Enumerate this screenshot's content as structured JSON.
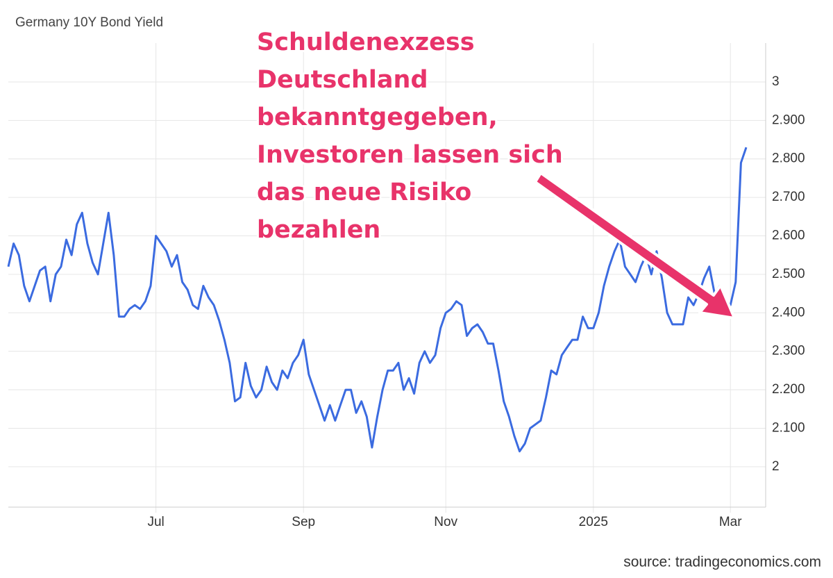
{
  "chart_data": {
    "type": "line",
    "title": "Germany 10Y Bond Yield",
    "annotation": [
      "Schuldenexzess",
      "Deutschland",
      "bekanntgegeben,",
      "Investoren lassen sich",
      "das neue Risiko",
      "bezahlen"
    ],
    "source": "source: tradingeconomics.com",
    "color": "#3b6be0",
    "categories": [
      null,
      null,
      null,
      null,
      null,
      null,
      null,
      null,
      null,
      null,
      null,
      null,
      null,
      null,
      null,
      null,
      null,
      null,
      null,
      null,
      null,
      null,
      null,
      null,
      null,
      null,
      null,
      null,
      "Jul",
      null,
      null,
      null,
      null,
      null,
      null,
      null,
      null,
      null,
      null,
      null,
      null,
      null,
      null,
      null,
      null,
      null,
      null,
      null,
      null,
      null,
      null,
      null,
      null,
      null,
      null,
      null,
      "Sep",
      null,
      null,
      null,
      null,
      null,
      null,
      null,
      null,
      null,
      null,
      null,
      null,
      null,
      null,
      null,
      null,
      null,
      null,
      null,
      null,
      null,
      null,
      null,
      null,
      null,
      null,
      "Nov",
      null,
      null,
      null,
      null,
      null,
      null,
      null,
      null,
      null,
      null,
      null,
      null,
      null,
      null,
      null,
      null,
      null,
      null,
      null,
      null,
      null,
      null,
      null,
      null,
      null,
      null,
      null,
      "2025",
      null,
      null,
      null,
      null,
      null,
      null,
      null,
      null,
      null,
      null,
      null,
      null,
      null,
      null,
      null,
      null,
      null,
      null,
      null,
      null,
      null,
      null,
      null,
      null,
      null,
      "Mar",
      null,
      null,
      null
    ],
    "values": [
      2.52,
      2.58,
      2.55,
      2.47,
      2.43,
      2.47,
      2.51,
      2.52,
      2.43,
      2.5,
      2.52,
      2.59,
      2.55,
      2.63,
      2.66,
      2.58,
      2.53,
      2.5,
      2.58,
      2.66,
      2.55,
      2.39,
      2.39,
      2.41,
      2.42,
      2.41,
      2.43,
      2.47,
      2.6,
      2.58,
      2.56,
      2.52,
      2.55,
      2.48,
      2.46,
      2.42,
      2.41,
      2.47,
      2.44,
      2.42,
      2.38,
      2.33,
      2.27,
      2.17,
      2.18,
      2.27,
      2.21,
      2.18,
      2.2,
      2.26,
      2.22,
      2.2,
      2.25,
      2.23,
      2.27,
      2.29,
      2.33,
      2.24,
      2.2,
      2.16,
      2.12,
      2.16,
      2.12,
      2.16,
      2.2,
      2.2,
      2.14,
      2.17,
      2.13,
      2.05,
      2.13,
      2.2,
      2.25,
      2.25,
      2.27,
      2.2,
      2.23,
      2.19,
      2.27,
      2.3,
      2.27,
      2.29,
      2.36,
      2.4,
      2.41,
      2.43,
      2.42,
      2.34,
      2.36,
      2.37,
      2.35,
      2.32,
      2.32,
      2.25,
      2.17,
      2.13,
      2.08,
      2.04,
      2.06,
      2.1,
      2.11,
      2.12,
      2.18,
      2.25,
      2.24,
      2.29,
      2.31,
      2.33,
      2.33,
      2.39,
      2.36,
      2.36,
      2.4,
      2.47,
      2.52,
      2.56,
      2.59,
      2.52,
      2.5,
      2.48,
      2.52,
      2.55,
      2.5,
      2.56,
      2.49,
      2.4,
      2.37,
      2.37,
      2.37,
      2.44,
      2.42,
      2.45,
      2.49,
      2.52,
      2.45,
      2.47,
      2.4,
      2.42,
      2.48,
      2.79,
      2.83
    ],
    "ylim": [
      1.895,
      3.101
    ],
    "yticks": [
      2,
      {
        "value": 2.1,
        "label": "2.100"
      },
      {
        "value": 2.2,
        "label": "2.200"
      },
      {
        "value": 2.3,
        "label": "2.300"
      },
      {
        "value": 2.4,
        "label": "2.400"
      },
      {
        "value": 2.5,
        "label": "2.500"
      },
      {
        "value": 2.6,
        "label": "2.600"
      },
      {
        "value": 2.7,
        "label": "2.700"
      },
      {
        "value": 2.8,
        "label": "2.800"
      },
      {
        "value": 2.9,
        "label": "2.900"
      },
      3
    ],
    "grid": true
  }
}
